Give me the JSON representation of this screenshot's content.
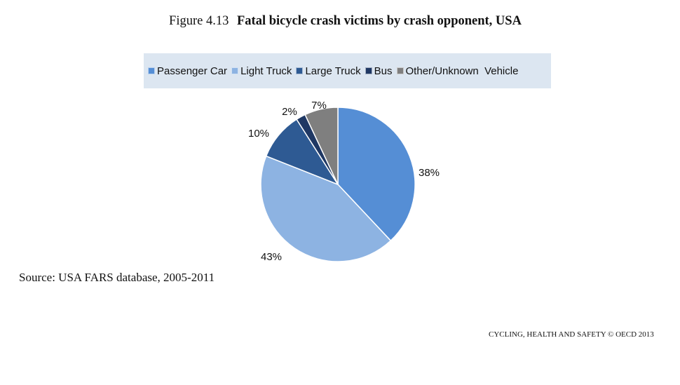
{
  "figure": {
    "number": "Figure 4.13",
    "title": "Fatal bicycle crash victims by crash opponent, USA"
  },
  "chart_data": {
    "type": "pie",
    "title": "Fatal bicycle crash victims by crash opponent, USA",
    "legend_position": "top",
    "slices": [
      {
        "name": "Passenger Car",
        "value": 38,
        "label": "38%",
        "color": "#558ed5"
      },
      {
        "name": "Light Truck",
        "value": 43,
        "label": "43%",
        "color": "#8db3e2"
      },
      {
        "name": "Large Truck",
        "value": 10,
        "label": "10%",
        "color": "#2e5a93"
      },
      {
        "name": "Bus",
        "value": 2,
        "label": "2%",
        "color": "#1f3864"
      },
      {
        "name": "Other/Unknown  Vehicle",
        "value": 7,
        "label": "7%",
        "color": "#7f7f7f"
      }
    ]
  },
  "legend": {
    "background": "#dce6f1"
  },
  "source": "Source: USA FARS database, 2005-2011",
  "footer": "CYCLING, HEALTH AND SAFETY © OECD 2013"
}
